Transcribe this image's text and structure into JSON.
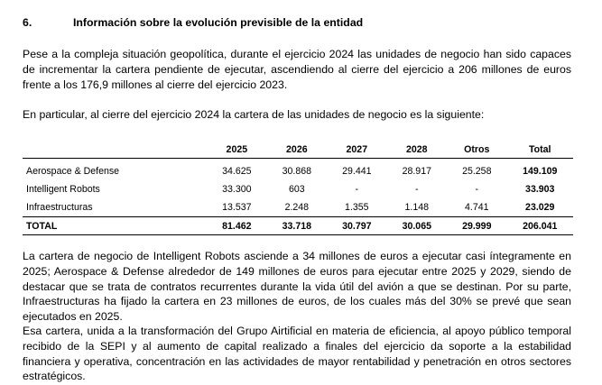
{
  "section": {
    "number": "6.",
    "title": "Información sobre la evolución previsible de la entidad"
  },
  "paragraphs": {
    "p1": "Pese a la compleja situación geopolítica, durante el ejercicio 2024 las unidades de negocio han sido capaces de incrementar la cartera pendiente de ejecutar, ascendiendo al cierre del ejercicio a 206 millones de euros frente a los 176,9 millones al cierre del ejercicio 2023.",
    "p2": "En particular, al cierre del ejercicio 2024 la cartera de las unidades de negocio es la siguiente:",
    "p3": "La cartera de negocio de Intelligent Robots asciende a 34 millones de euros a ejecutar casi íntegramente en 2025; Aerospace & Defense alrededor de 149 millones de euros para ejecutar entre 2025 y 2029, siendo de destacar que se trata de contratos recurrentes durante la vida útil del avión a que se destinan. Por su parte, Infraestructuras ha fijado la cartera en 23 millones de euros, de los cuales más del 30% se prevé que sean ejecutados en 2025.",
    "p4": "Esa cartera, unida a la transformación del Grupo Airtificial en materia de eficiencia, al apoyo público temporal recibido de la SEPI y al aumento de capital realizado a finales del ejercicio da soporte a la estabilidad financiera y operativa, concentración en las actividades de mayor rentabilidad y penetración en otros sectores estratégicos."
  },
  "table": {
    "headers": [
      "",
      "2025",
      "2026",
      "2027",
      "2028",
      "Otros",
      "Total"
    ],
    "rows": [
      [
        "Aerospace & Defense",
        "34.625",
        "30.868",
        "29.441",
        "28.917",
        "25.258",
        "149.109"
      ],
      [
        "Intelligent Robots",
        "33.300",
        "603",
        "-",
        "-",
        "-",
        "33.903"
      ],
      [
        "Infraestructuras",
        "13.537",
        "2.248",
        "1.355",
        "1.148",
        "4.741",
        "23.029"
      ]
    ],
    "total": [
      "TOTAL",
      "81.462",
      "33.718",
      "30.797",
      "30.065",
      "29.999",
      "206.041"
    ]
  }
}
